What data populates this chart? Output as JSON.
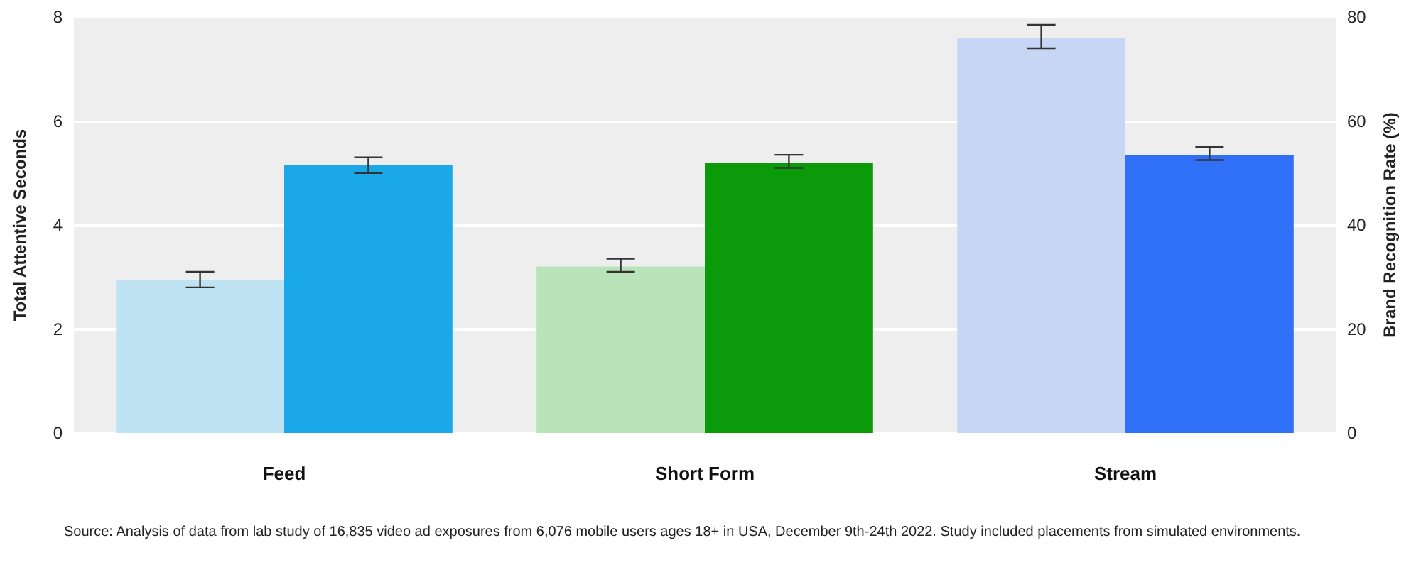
{
  "chart_data": {
    "type": "bar",
    "categories": [
      "Feed",
      "Short Form",
      "Stream"
    ],
    "ylabel": "Total Attentive Seconds",
    "y2label": "Brand Recognition Rate (%)",
    "ylim": [
      0,
      8
    ],
    "yticks": [
      0,
      2,
      4,
      6,
      8
    ],
    "y2lim": [
      0,
      80
    ],
    "y2ticks": [
      0,
      20,
      40,
      60,
      80
    ],
    "grid": "y",
    "series": [
      {
        "colors": [
          "#bfe3f3",
          "#b9e4b9",
          "#c6d6f4"
        ],
        "values": [
          2.95,
          3.2,
          7.6
        ],
        "errors": [
          [
            2.8,
            3.1
          ],
          [
            3.1,
            3.35
          ],
          [
            7.4,
            7.85
          ]
        ]
      },
      {
        "axis": "y2",
        "colors": [
          "#1aa8e8",
          "#0a9a0a",
          "#2f70f6"
        ],
        "values": [
          51.5,
          52,
          53.5
        ],
        "errors": [
          [
            50,
            53
          ],
          [
            51,
            53.5
          ],
          [
            52.5,
            55
          ]
        ]
      }
    ],
    "annotations": [
      "Source: Analysis of data from lab study of 16,835 video ad exposures from 6,076 mobile users ages 18+ in USA, December 9th-24th 2022. Study included placements from simulated environments."
    ]
  }
}
